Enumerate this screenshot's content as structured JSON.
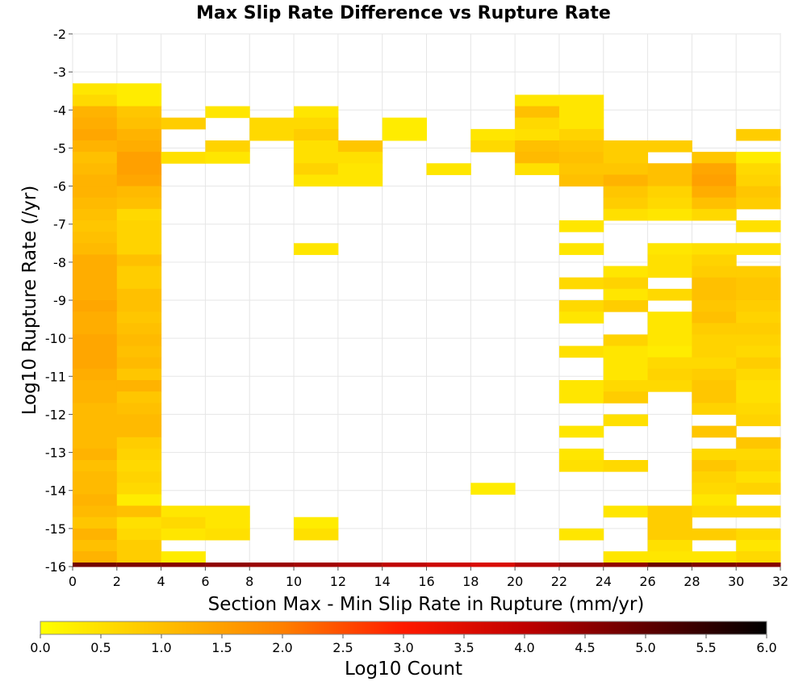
{
  "chart_data": {
    "type": "heatmap",
    "title": "Max Slip Rate Difference vs Rupture Rate",
    "xlabel": "Section Max - Min Slip Rate in Rupture (mm/yr)",
    "ylabel": "Log10 Rupture Rate (/yr)",
    "xlim": [
      0,
      32
    ],
    "ylim": [
      -16,
      -2
    ],
    "x_bin_width": 2,
    "y_bin_height": 0.3,
    "x_ticks": [
      "0",
      "2",
      "4",
      "6",
      "8",
      "10",
      "12",
      "14",
      "16",
      "18",
      "20",
      "22",
      "24",
      "26",
      "28",
      "30",
      "32"
    ],
    "y_ticks": [
      "-2",
      "-3",
      "-4",
      "-5",
      "-6",
      "-7",
      "-8",
      "-9",
      "-10",
      "-11",
      "-12",
      "-13",
      "-14",
      "-15",
      "-16"
    ],
    "colorbar": {
      "label": "Log10 Count",
      "range": [
        0,
        6
      ],
      "ticks": [
        "0.0",
        "0.5",
        "1.0",
        "1.5",
        "2.0",
        "2.5",
        "3.0",
        "3.5",
        "4.0",
        "4.5",
        "5.0",
        "5.5",
        "6.0"
      ],
      "stops": [
        "#ffff00",
        "#ffc000",
        "#ff8000",
        "#ff1a00",
        "#c00000",
        "#600000",
        "#000000"
      ]
    },
    "columns": [
      {
        "x_start": 0,
        "cells": [
          [
            -3.3,
            0.4
          ],
          [
            -3.6,
            0.6
          ],
          [
            -3.9,
            1.2
          ],
          [
            -4.2,
            1.3
          ],
          [
            -4.5,
            1.4
          ],
          [
            -4.8,
            1.2
          ],
          [
            -5.1,
            1.0
          ],
          [
            -5.4,
            1.1
          ],
          [
            -5.7,
            1.2
          ],
          [
            -6.0,
            1.2
          ],
          [
            -6.3,
            1.1
          ],
          [
            -6.6,
            1.0
          ],
          [
            -6.9,
            0.9
          ],
          [
            -7.2,
            1.0
          ],
          [
            -7.5,
            1.1
          ],
          [
            -7.8,
            1.3
          ],
          [
            -8.1,
            1.3
          ],
          [
            -8.4,
            1.3
          ],
          [
            -8.7,
            1.3
          ],
          [
            -9.0,
            1.4
          ],
          [
            -9.3,
            1.3
          ],
          [
            -9.6,
            1.3
          ],
          [
            -9.9,
            1.4
          ],
          [
            -10.2,
            1.4
          ],
          [
            -10.5,
            1.4
          ],
          [
            -10.8,
            1.3
          ],
          [
            -11.1,
            1.2
          ],
          [
            -11.4,
            1.2
          ],
          [
            -11.7,
            1.1
          ],
          [
            -12.0,
            1.1
          ],
          [
            -12.3,
            1.1
          ],
          [
            -12.6,
            1.1
          ],
          [
            -12.9,
            1.2
          ],
          [
            -13.2,
            1.0
          ],
          [
            -13.5,
            1.1
          ],
          [
            -13.8,
            1.1
          ],
          [
            -14.1,
            1.2
          ],
          [
            -14.4,
            1.1
          ],
          [
            -14.7,
            0.9
          ],
          [
            -15.0,
            1.2
          ],
          [
            -15.3,
            1.0
          ],
          [
            -15.6,
            1.2
          ],
          [
            -15.9,
            1.3
          ],
          [
            -16.0,
            4.8
          ]
        ]
      },
      {
        "x_start": 2,
        "cells": [
          [
            -3.3,
            0.3
          ],
          [
            -3.6,
            0.3
          ],
          [
            -3.9,
            0.9
          ],
          [
            -4.2,
            1.0
          ],
          [
            -4.5,
            1.2
          ],
          [
            -4.8,
            1.3
          ],
          [
            -5.1,
            1.5
          ],
          [
            -5.4,
            1.5
          ],
          [
            -5.7,
            1.4
          ],
          [
            -6.0,
            1.1
          ],
          [
            -6.3,
            1.0
          ],
          [
            -6.6,
            0.6
          ],
          [
            -6.9,
            0.7
          ],
          [
            -7.2,
            0.7
          ],
          [
            -7.5,
            0.7
          ],
          [
            -7.8,
            1.0
          ],
          [
            -8.1,
            0.8
          ],
          [
            -8.4,
            0.8
          ],
          [
            -8.7,
            1.0
          ],
          [
            -9.0,
            1.0
          ],
          [
            -9.3,
            0.9
          ],
          [
            -9.6,
            1.0
          ],
          [
            -9.9,
            1.1
          ],
          [
            -10.2,
            1.0
          ],
          [
            -10.5,
            1.1
          ],
          [
            -10.8,
            0.9
          ],
          [
            -11.1,
            1.2
          ],
          [
            -11.4,
            0.9
          ],
          [
            -11.7,
            1.0
          ],
          [
            -12.0,
            1.1
          ],
          [
            -12.3,
            1.1
          ],
          [
            -12.6,
            0.8
          ],
          [
            -12.9,
            0.7
          ],
          [
            -13.2,
            0.6
          ],
          [
            -13.5,
            0.7
          ],
          [
            -13.8,
            0.6
          ],
          [
            -14.1,
            0.3
          ],
          [
            -14.4,
            1.0
          ],
          [
            -14.7,
            0.5
          ],
          [
            -15.0,
            0.6
          ],
          [
            -15.3,
            0.8
          ],
          [
            -15.6,
            0.8
          ],
          [
            -15.9,
            0.7
          ],
          [
            -16.0,
            4.7
          ]
        ]
      },
      {
        "x_start": 4,
        "cells": [
          [
            -4.2,
            0.8
          ],
          [
            -5.1,
            0.5
          ],
          [
            -14.4,
            0.4
          ],
          [
            -14.7,
            0.6
          ],
          [
            -15.0,
            0.4
          ],
          [
            -15.6,
            0.3
          ],
          [
            -15.9,
            0.3
          ],
          [
            -16.0,
            4.6
          ]
        ]
      },
      {
        "x_start": 6,
        "cells": [
          [
            -3.9,
            0.4
          ],
          [
            -4.8,
            0.7
          ],
          [
            -5.1,
            0.4
          ],
          [
            -14.4,
            0.4
          ],
          [
            -14.7,
            0.4
          ],
          [
            -15.0,
            0.5
          ],
          [
            -15.9,
            0.5
          ],
          [
            -16.0,
            4.5
          ]
        ]
      },
      {
        "x_start": 8,
        "cells": [
          [
            -4.2,
            0.6
          ],
          [
            -4.5,
            0.6
          ],
          [
            -16.0,
            4.4
          ]
        ]
      },
      {
        "x_start": 10,
        "cells": [
          [
            -3.9,
            0.4
          ],
          [
            -4.2,
            0.6
          ],
          [
            -4.5,
            0.8
          ],
          [
            -4.8,
            0.5
          ],
          [
            -5.1,
            0.5
          ],
          [
            -5.4,
            0.7
          ],
          [
            -5.7,
            0.4
          ],
          [
            -7.5,
            0.4
          ],
          [
            -14.7,
            0.3
          ],
          [
            -15.0,
            0.5
          ],
          [
            -15.9,
            0.8
          ],
          [
            -16.0,
            4.3
          ]
        ]
      },
      {
        "x_start": 12,
        "cells": [
          [
            -4.8,
            0.9
          ],
          [
            -5.1,
            0.5
          ],
          [
            -5.4,
            0.4
          ],
          [
            -5.7,
            0.4
          ],
          [
            -16.0,
            4.2
          ]
        ]
      },
      {
        "x_start": 14,
        "cells": [
          [
            -4.2,
            0.3
          ],
          [
            -4.5,
            0.3
          ],
          [
            -15.9,
            0.5
          ],
          [
            -16.0,
            4.0
          ]
        ]
      },
      {
        "x_start": 16,
        "cells": [
          [
            -5.4,
            0.4
          ],
          [
            -16.0,
            3.8
          ]
        ]
      },
      {
        "x_start": 18,
        "cells": [
          [
            -4.5,
            0.4
          ],
          [
            -4.8,
            0.6
          ],
          [
            -13.8,
            0.3
          ],
          [
            -16.0,
            3.6
          ]
        ]
      },
      {
        "x_start": 20,
        "cells": [
          [
            -3.6,
            0.4
          ],
          [
            -3.9,
            1.0
          ],
          [
            -4.2,
            0.6
          ],
          [
            -4.5,
            0.5
          ],
          [
            -4.8,
            1.0
          ],
          [
            -5.1,
            1.1
          ],
          [
            -5.4,
            0.5
          ],
          [
            -16.0,
            4.1
          ]
        ]
      },
      {
        "x_start": 22,
        "cells": [
          [
            -3.6,
            0.4
          ],
          [
            -3.9,
            0.4
          ],
          [
            -4.2,
            0.4
          ],
          [
            -4.5,
            0.7
          ],
          [
            -4.8,
            0.9
          ],
          [
            -5.1,
            1.0
          ],
          [
            -5.4,
            0.9
          ],
          [
            -5.7,
            1.0
          ],
          [
            -6.9,
            0.4
          ],
          [
            -7.5,
            0.4
          ],
          [
            -8.4,
            0.6
          ],
          [
            -9.0,
            0.6
          ],
          [
            -9.3,
            0.4
          ],
          [
            -10.2,
            0.5
          ],
          [
            -11.1,
            0.4
          ],
          [
            -11.4,
            0.4
          ],
          [
            -12.3,
            0.4
          ],
          [
            -12.9,
            0.4
          ],
          [
            -13.2,
            0.5
          ],
          [
            -15.0,
            0.4
          ],
          [
            -15.9,
            0.8
          ],
          [
            -16.0,
            4.4
          ]
        ]
      },
      {
        "x_start": 24,
        "cells": [
          [
            -4.8,
            0.8
          ],
          [
            -5.1,
            0.8
          ],
          [
            -5.4,
            0.9
          ],
          [
            -5.7,
            1.2
          ],
          [
            -6.0,
            0.9
          ],
          [
            -6.3,
            0.8
          ],
          [
            -6.6,
            0.5
          ],
          [
            -8.1,
            0.4
          ],
          [
            -8.4,
            0.7
          ],
          [
            -8.7,
            0.4
          ],
          [
            -9.0,
            0.8
          ],
          [
            -9.9,
            0.7
          ],
          [
            -10.2,
            0.4
          ],
          [
            -10.5,
            0.4
          ],
          [
            -10.8,
            0.4
          ],
          [
            -11.1,
            0.6
          ],
          [
            -11.4,
            0.8
          ],
          [
            -12.0,
            0.5
          ],
          [
            -13.2,
            0.6
          ],
          [
            -14.4,
            0.4
          ],
          [
            -15.6,
            0.4
          ],
          [
            -15.9,
            0.5
          ],
          [
            -16.0,
            4.5
          ]
        ]
      },
      {
        "x_start": 26,
        "cells": [
          [
            -4.8,
            0.8
          ],
          [
            -5.4,
            1.0
          ],
          [
            -5.7,
            1.0
          ],
          [
            -6.0,
            0.7
          ],
          [
            -6.3,
            0.6
          ],
          [
            -6.6,
            0.4
          ],
          [
            -7.5,
            0.4
          ],
          [
            -7.8,
            0.5
          ],
          [
            -8.1,
            0.5
          ],
          [
            -8.7,
            0.6
          ],
          [
            -9.3,
            0.4
          ],
          [
            -9.6,
            0.4
          ],
          [
            -9.9,
            0.4
          ],
          [
            -10.2,
            0.3
          ],
          [
            -10.5,
            0.6
          ],
          [
            -10.8,
            0.7
          ],
          [
            -11.1,
            0.6
          ],
          [
            -14.4,
            0.8
          ],
          [
            -14.7,
            0.8
          ],
          [
            -15.0,
            0.8
          ],
          [
            -15.3,
            0.5
          ],
          [
            -15.6,
            0.4
          ],
          [
            -15.9,
            0.4
          ],
          [
            -16.0,
            4.9
          ]
        ]
      },
      {
        "x_start": 28,
        "cells": [
          [
            -5.1,
            0.9
          ],
          [
            -5.4,
            1.4
          ],
          [
            -5.7,
            1.5
          ],
          [
            -6.0,
            1.3
          ],
          [
            -6.3,
            1.0
          ],
          [
            -6.6,
            0.6
          ],
          [
            -7.5,
            0.5
          ],
          [
            -7.8,
            0.7
          ],
          [
            -8.1,
            0.8
          ],
          [
            -8.4,
            1.0
          ],
          [
            -8.7,
            1.0
          ],
          [
            -9.0,
            0.9
          ],
          [
            -9.3,
            1.0
          ],
          [
            -9.6,
            0.8
          ],
          [
            -9.9,
            0.7
          ],
          [
            -10.2,
            0.7
          ],
          [
            -10.5,
            0.6
          ],
          [
            -10.8,
            0.8
          ],
          [
            -11.1,
            0.9
          ],
          [
            -11.4,
            0.9
          ],
          [
            -11.7,
            0.7
          ],
          [
            -12.3,
            0.9
          ],
          [
            -12.9,
            0.6
          ],
          [
            -13.2,
            0.9
          ],
          [
            -13.5,
            0.7
          ],
          [
            -13.8,
            0.6
          ],
          [
            -14.1,
            0.4
          ],
          [
            -14.4,
            0.6
          ],
          [
            -15.0,
            0.8
          ],
          [
            -15.6,
            0.4
          ],
          [
            -15.9,
            0.6
          ],
          [
            -16.0,
            4.7
          ]
        ]
      },
      {
        "x_start": 30,
        "cells": [
          [
            -4.5,
            0.8
          ],
          [
            -5.1,
            0.3
          ],
          [
            -5.4,
            0.6
          ],
          [
            -5.7,
            0.7
          ],
          [
            -6.0,
            0.9
          ],
          [
            -6.3,
            0.8
          ],
          [
            -6.9,
            0.5
          ],
          [
            -7.5,
            0.5
          ],
          [
            -8.1,
            0.8
          ],
          [
            -8.4,
            0.9
          ],
          [
            -8.7,
            0.9
          ],
          [
            -9.0,
            0.8
          ],
          [
            -9.3,
            0.7
          ],
          [
            -9.6,
            0.8
          ],
          [
            -9.9,
            0.7
          ],
          [
            -10.2,
            0.6
          ],
          [
            -10.5,
            0.8
          ],
          [
            -10.8,
            0.6
          ],
          [
            -11.1,
            0.5
          ],
          [
            -11.4,
            0.5
          ],
          [
            -11.7,
            0.6
          ],
          [
            -12.0,
            0.7
          ],
          [
            -12.6,
            0.9
          ],
          [
            -12.9,
            0.6
          ],
          [
            -13.2,
            0.7
          ],
          [
            -13.5,
            0.5
          ],
          [
            -13.8,
            0.7
          ],
          [
            -14.4,
            0.6
          ],
          [
            -15.0,
            0.6
          ],
          [
            -15.3,
            0.4
          ],
          [
            -15.6,
            0.6
          ],
          [
            -15.9,
            0.5
          ],
          [
            -16.0,
            4.6
          ]
        ]
      }
    ]
  }
}
